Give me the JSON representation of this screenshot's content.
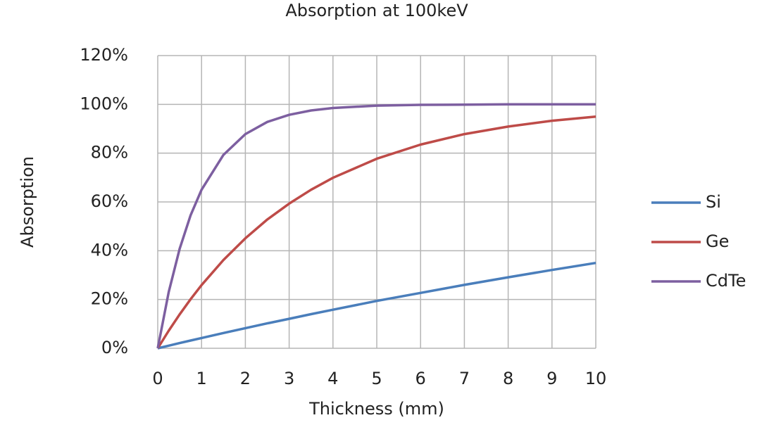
{
  "chart_data": {
    "type": "line",
    "title": "Absorption at 100keV",
    "x_label": "Thickness (mm)",
    "y_label": "Absorption",
    "x": [
      0,
      0.25,
      0.5,
      0.75,
      1,
      1.5,
      2,
      2.5,
      3,
      3.5,
      4,
      5,
      6,
      7,
      8,
      9,
      10
    ],
    "series": [
      {
        "name": "Si",
        "color": "#4a7ebb",
        "values": [
          0,
          1.07,
          2.13,
          3.17,
          4.21,
          6.25,
          8.24,
          10.2,
          12.1,
          14.0,
          15.8,
          19.4,
          22.7,
          26.0,
          29.1,
          32.1,
          35.0
        ]
      },
      {
        "name": "Ge",
        "color": "#be4b48",
        "values": [
          0,
          7.2,
          13.9,
          20.1,
          25.9,
          36.2,
          45.1,
          52.8,
          59.3,
          65.0,
          69.9,
          77.7,
          83.5,
          87.8,
          90.9,
          93.3,
          95.0
        ]
      },
      {
        "name": "CdTe",
        "color": "#7d5fa0",
        "values": [
          0,
          23.1,
          40.8,
          54.5,
          65.0,
          79.3,
          87.8,
          92.8,
          95.7,
          97.5,
          98.5,
          99.5,
          99.8,
          99.9,
          100,
          100,
          100
        ]
      }
    ],
    "xlim": [
      0,
      10
    ],
    "xticks": [
      0,
      1,
      2,
      3,
      4,
      5,
      6,
      7,
      8,
      9,
      10
    ],
    "ylim": [
      0,
      120
    ],
    "yticks": [
      {
        "value": 0,
        "label": "0%"
      },
      {
        "value": 20,
        "label": "20%"
      },
      {
        "value": 40,
        "label": "40%"
      },
      {
        "value": 60,
        "label": "60%"
      },
      {
        "value": 80,
        "label": "80%"
      },
      {
        "value": 100,
        "label": "100%"
      },
      {
        "value": 120,
        "label": "120%"
      }
    ],
    "grid": true,
    "legend": "right"
  }
}
